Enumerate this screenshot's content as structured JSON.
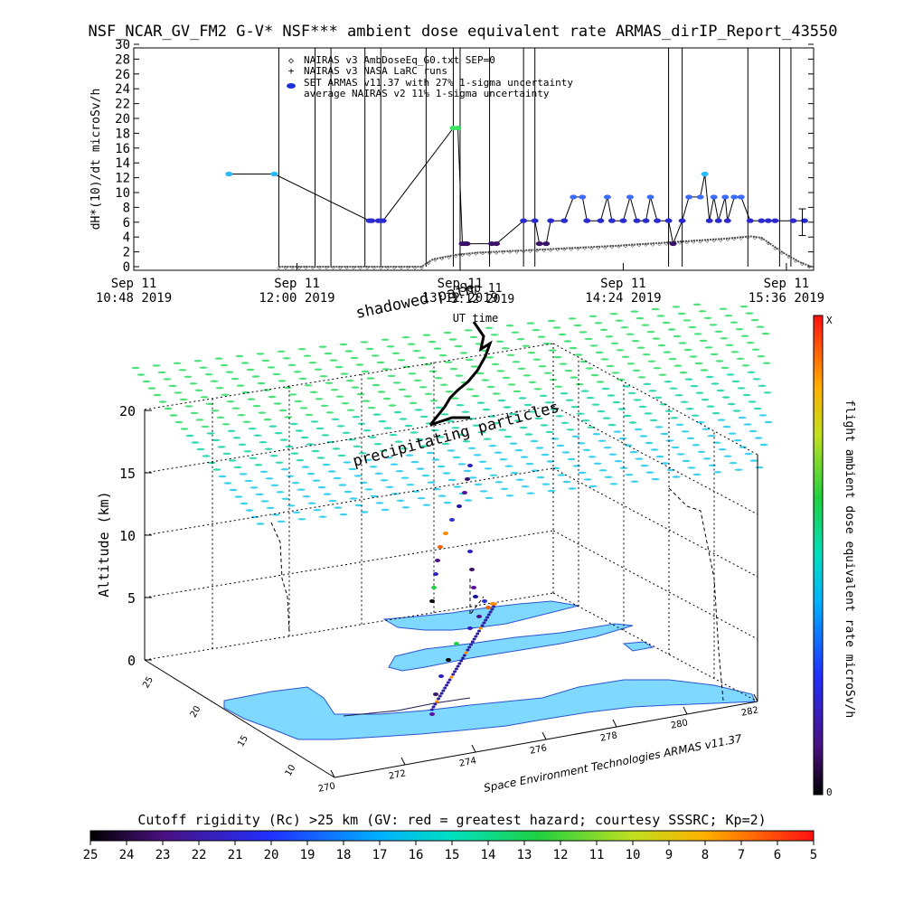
{
  "chart_data": [
    {
      "type": "line",
      "title": "NSF_NCAR_GV_FM2 G-V* NSF*** ambient dose equivalent rate ARMAS_dirIP_Report_43550",
      "ylabel": "dH*(10)/dt microSv/h",
      "ylim": [
        0,
        30
      ],
      "yticks": [
        0,
        2,
        4,
        6,
        8,
        10,
        12,
        14,
        16,
        18,
        20,
        22,
        24,
        26,
        28,
        30
      ],
      "xlabels": [
        {
          "time": "10:48",
          "line1": "Sep 11",
          "line2": "10:48 2019"
        },
        {
          "time": "12:00",
          "line1": "Sep 11",
          "line2": "12:00 2019"
        },
        {
          "time": "13:12",
          "line1": "Sep 11",
          "line2": "13:12 2019"
        },
        {
          "time": "14:24",
          "line1": "Sep 11",
          "line2": "14:24 2019"
        },
        {
          "time": "15:36",
          "line1": "Sep 11",
          "line2": "15:36 2019"
        }
      ],
      "xlabel": "UT time",
      "legend": [
        {
          "marker": "diamond",
          "label": "NAIRAS v3 AmbDoseEq_G0.txt SEP=0"
        },
        {
          "marker": "plus",
          "label": "NAIRAS v3 NASA LaRC runs"
        },
        {
          "marker": "dot",
          "color": "#1a30d8",
          "label": "SET ARMAS v11.37 with 27% 1-sigma uncertainty"
        },
        {
          "marker": "none",
          "label": "average NAIRAS v2 11% 1-sigma uncertainty"
        }
      ],
      "series": [
        {
          "name": "SET ARMAS v11.37 with 27% 1-sigma uncertainty",
          "points": [
            {
              "t": "11:30",
              "v": 12.5
            },
            {
              "t": "11:50",
              "v": 12.5
            },
            {
              "t": "12:32",
              "v": 6.2
            },
            {
              "t": "12:33",
              "v": 6.2
            },
            {
              "t": "12:36",
              "v": 6.2
            },
            {
              "t": "12:38",
              "v": 6.2
            },
            {
              "t": "13:09",
              "v": 18.7
            },
            {
              "t": "13:11",
              "v": 18.7
            },
            {
              "t": "13:13",
              "v": 3.1
            },
            {
              "t": "13:14",
              "v": 3.1
            },
            {
              "t": "13:15",
              "v": 3.1
            },
            {
              "t": "13:26",
              "v": 3.1
            },
            {
              "t": "13:28",
              "v": 3.1
            },
            {
              "t": "13:40",
              "v": 6.2
            },
            {
              "t": "13:45",
              "v": 6.2
            },
            {
              "t": "13:47",
              "v": 3.1
            },
            {
              "t": "13:50",
              "v": 3.1
            },
            {
              "t": "13:52",
              "v": 6.2
            },
            {
              "t": "13:58",
              "v": 6.2
            },
            {
              "t": "14:02",
              "v": 9.4
            },
            {
              "t": "14:06",
              "v": 9.4
            },
            {
              "t": "14:08",
              "v": 6.2
            },
            {
              "t": "14:14",
              "v": 6.2
            },
            {
              "t": "14:17",
              "v": 9.4
            },
            {
              "t": "14:19",
              "v": 6.2
            },
            {
              "t": "14:24",
              "v": 6.2
            },
            {
              "t": "14:27",
              "v": 9.4
            },
            {
              "t": "14:30",
              "v": 6.2
            },
            {
              "t": "14:34",
              "v": 6.2
            },
            {
              "t": "14:36",
              "v": 9.4
            },
            {
              "t": "14:39",
              "v": 6.2
            },
            {
              "t": "14:44",
              "v": 6.2
            },
            {
              "t": "14:46",
              "v": 3.1
            },
            {
              "t": "14:50",
              "v": 6.2
            },
            {
              "t": "14:53",
              "v": 9.4
            },
            {
              "t": "14:58",
              "v": 9.4
            },
            {
              "t": "15:00",
              "v": 12.5
            },
            {
              "t": "15:02",
              "v": 6.2
            },
            {
              "t": "15:04",
              "v": 9.4
            },
            {
              "t": "15:06",
              "v": 6.2
            },
            {
              "t": "15:09",
              "v": 9.4
            },
            {
              "t": "15:10",
              "v": 6.2
            },
            {
              "t": "15:13",
              "v": 9.4
            },
            {
              "t": "15:16",
              "v": 9.4
            },
            {
              "t": "15:20",
              "v": 6.2
            },
            {
              "t": "15:25",
              "v": 6.2
            },
            {
              "t": "15:28",
              "v": 6.2
            },
            {
              "t": "15:31",
              "v": 6.2
            },
            {
              "t": "15:39",
              "v": 6.2
            },
            {
              "t": "15:44",
              "v": 6.2
            }
          ]
        },
        {
          "name": "NAIRAS v3 AmbDoseEq_G0.txt SEP=0",
          "points": [
            {
              "t": "11:52",
              "v": 0
            },
            {
              "t": "12:30",
              "v": 0
            },
            {
              "t": "12:55",
              "v": 0
            },
            {
              "t": "13:00",
              "v": 1.0
            },
            {
              "t": "13:10",
              "v": 1.6
            },
            {
              "t": "13:20",
              "v": 1.9
            },
            {
              "t": "13:40",
              "v": 2.2
            },
            {
              "t": "14:00",
              "v": 2.5
            },
            {
              "t": "14:20",
              "v": 2.8
            },
            {
              "t": "14:40",
              "v": 3.2
            },
            {
              "t": "14:55",
              "v": 3.5
            },
            {
              "t": "15:10",
              "v": 3.8
            },
            {
              "t": "15:20",
              "v": 4.1
            },
            {
              "t": "15:25",
              "v": 3.9
            },
            {
              "t": "15:35",
              "v": 1.8
            },
            {
              "t": "15:42",
              "v": 0.6
            },
            {
              "t": "15:47",
              "v": 0
            }
          ]
        }
      ],
      "error_bar": {
        "t": "15:43",
        "center": 6.2,
        "low": 4.2,
        "high": 7.8
      }
    },
    {
      "type": "scatter",
      "zlabel": "Altitude (km)",
      "zticks": [
        "0",
        "5",
        "10",
        "15",
        "20"
      ],
      "xticks": [
        "270",
        "272",
        "274",
        "276",
        "278",
        "280",
        "282"
      ],
      "yticks": [
        "10",
        "15",
        "20",
        "25"
      ],
      "annotations": [
        "shadowed path",
        "precipitating particles",
        "Sep 11",
        "3:12 2019",
        "UT time"
      ],
      "credit": "Space Environment Technologies ARMAS v11.37",
      "right_colorbar": {
        "label": "flight ambient dose equivalent rate microSv/h",
        "top": "X",
        "bottom": "0"
      },
      "bottom_colorbar": {
        "title": "Cutoff rigidity (Rc) >25 km (GV: red = greatest hazard; courtesy SSSRC; Kp=2)",
        "ticks": [
          "25",
          "24",
          "23",
          "22",
          "21",
          "20",
          "19",
          "18",
          "17",
          "16",
          "15",
          "14",
          "13",
          "12",
          "11",
          "10",
          "9",
          "8",
          "7",
          "6",
          "5"
        ]
      }
    }
  ],
  "colors": {
    "armas_blue": "#2a2acf",
    "nairas": "#333333",
    "altitude_grid": "#3ad88a",
    "land": "#7fd8ff"
  }
}
